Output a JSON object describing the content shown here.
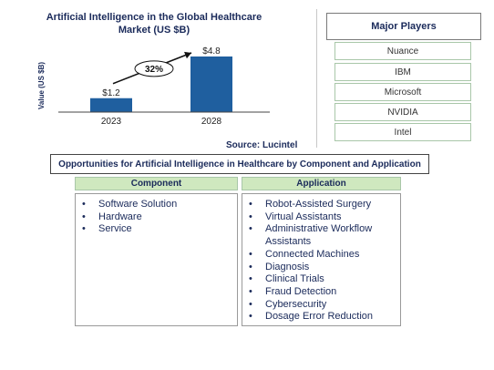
{
  "chart_data": {
    "type": "bar",
    "title": "Artificial Intelligence in the Global Healthcare Market (US $B)",
    "categories": [
      "2023",
      "2028"
    ],
    "values": [
      1.2,
      4.8
    ],
    "value_labels": [
      "$1.2",
      "$4.8"
    ],
    "ylabel": "Value (US $B)",
    "xlabel": "",
    "growth_annotation": "32%",
    "bar_color": "#1f5f9f",
    "grid": false
  },
  "source": "Source: Lucintel",
  "major_players": {
    "title": "Major Players",
    "items": [
      "Nuance",
      "IBM",
      "Microsoft",
      "NVIDIA",
      "Intel"
    ]
  },
  "opportunities": {
    "title": "Opportunities for Artificial Intelligence in Healthcare by Component and Application",
    "component": {
      "header": "Component",
      "items": [
        "Software Solution",
        "Hardware",
        "Service"
      ]
    },
    "application": {
      "header": "Application",
      "items": [
        "Robot-Assisted Surgery",
        "Virtual Assistants",
        "Administrative Workflow Assistants",
        "Connected Machines",
        "Diagnosis",
        "Clinical Trials",
        "Fraud Detection",
        "Cybersecurity",
        "Dosage Error Reduction"
      ]
    }
  },
  "colors": {
    "accent_green": "#cfe8bf",
    "title_navy": "#1a2a5a"
  }
}
